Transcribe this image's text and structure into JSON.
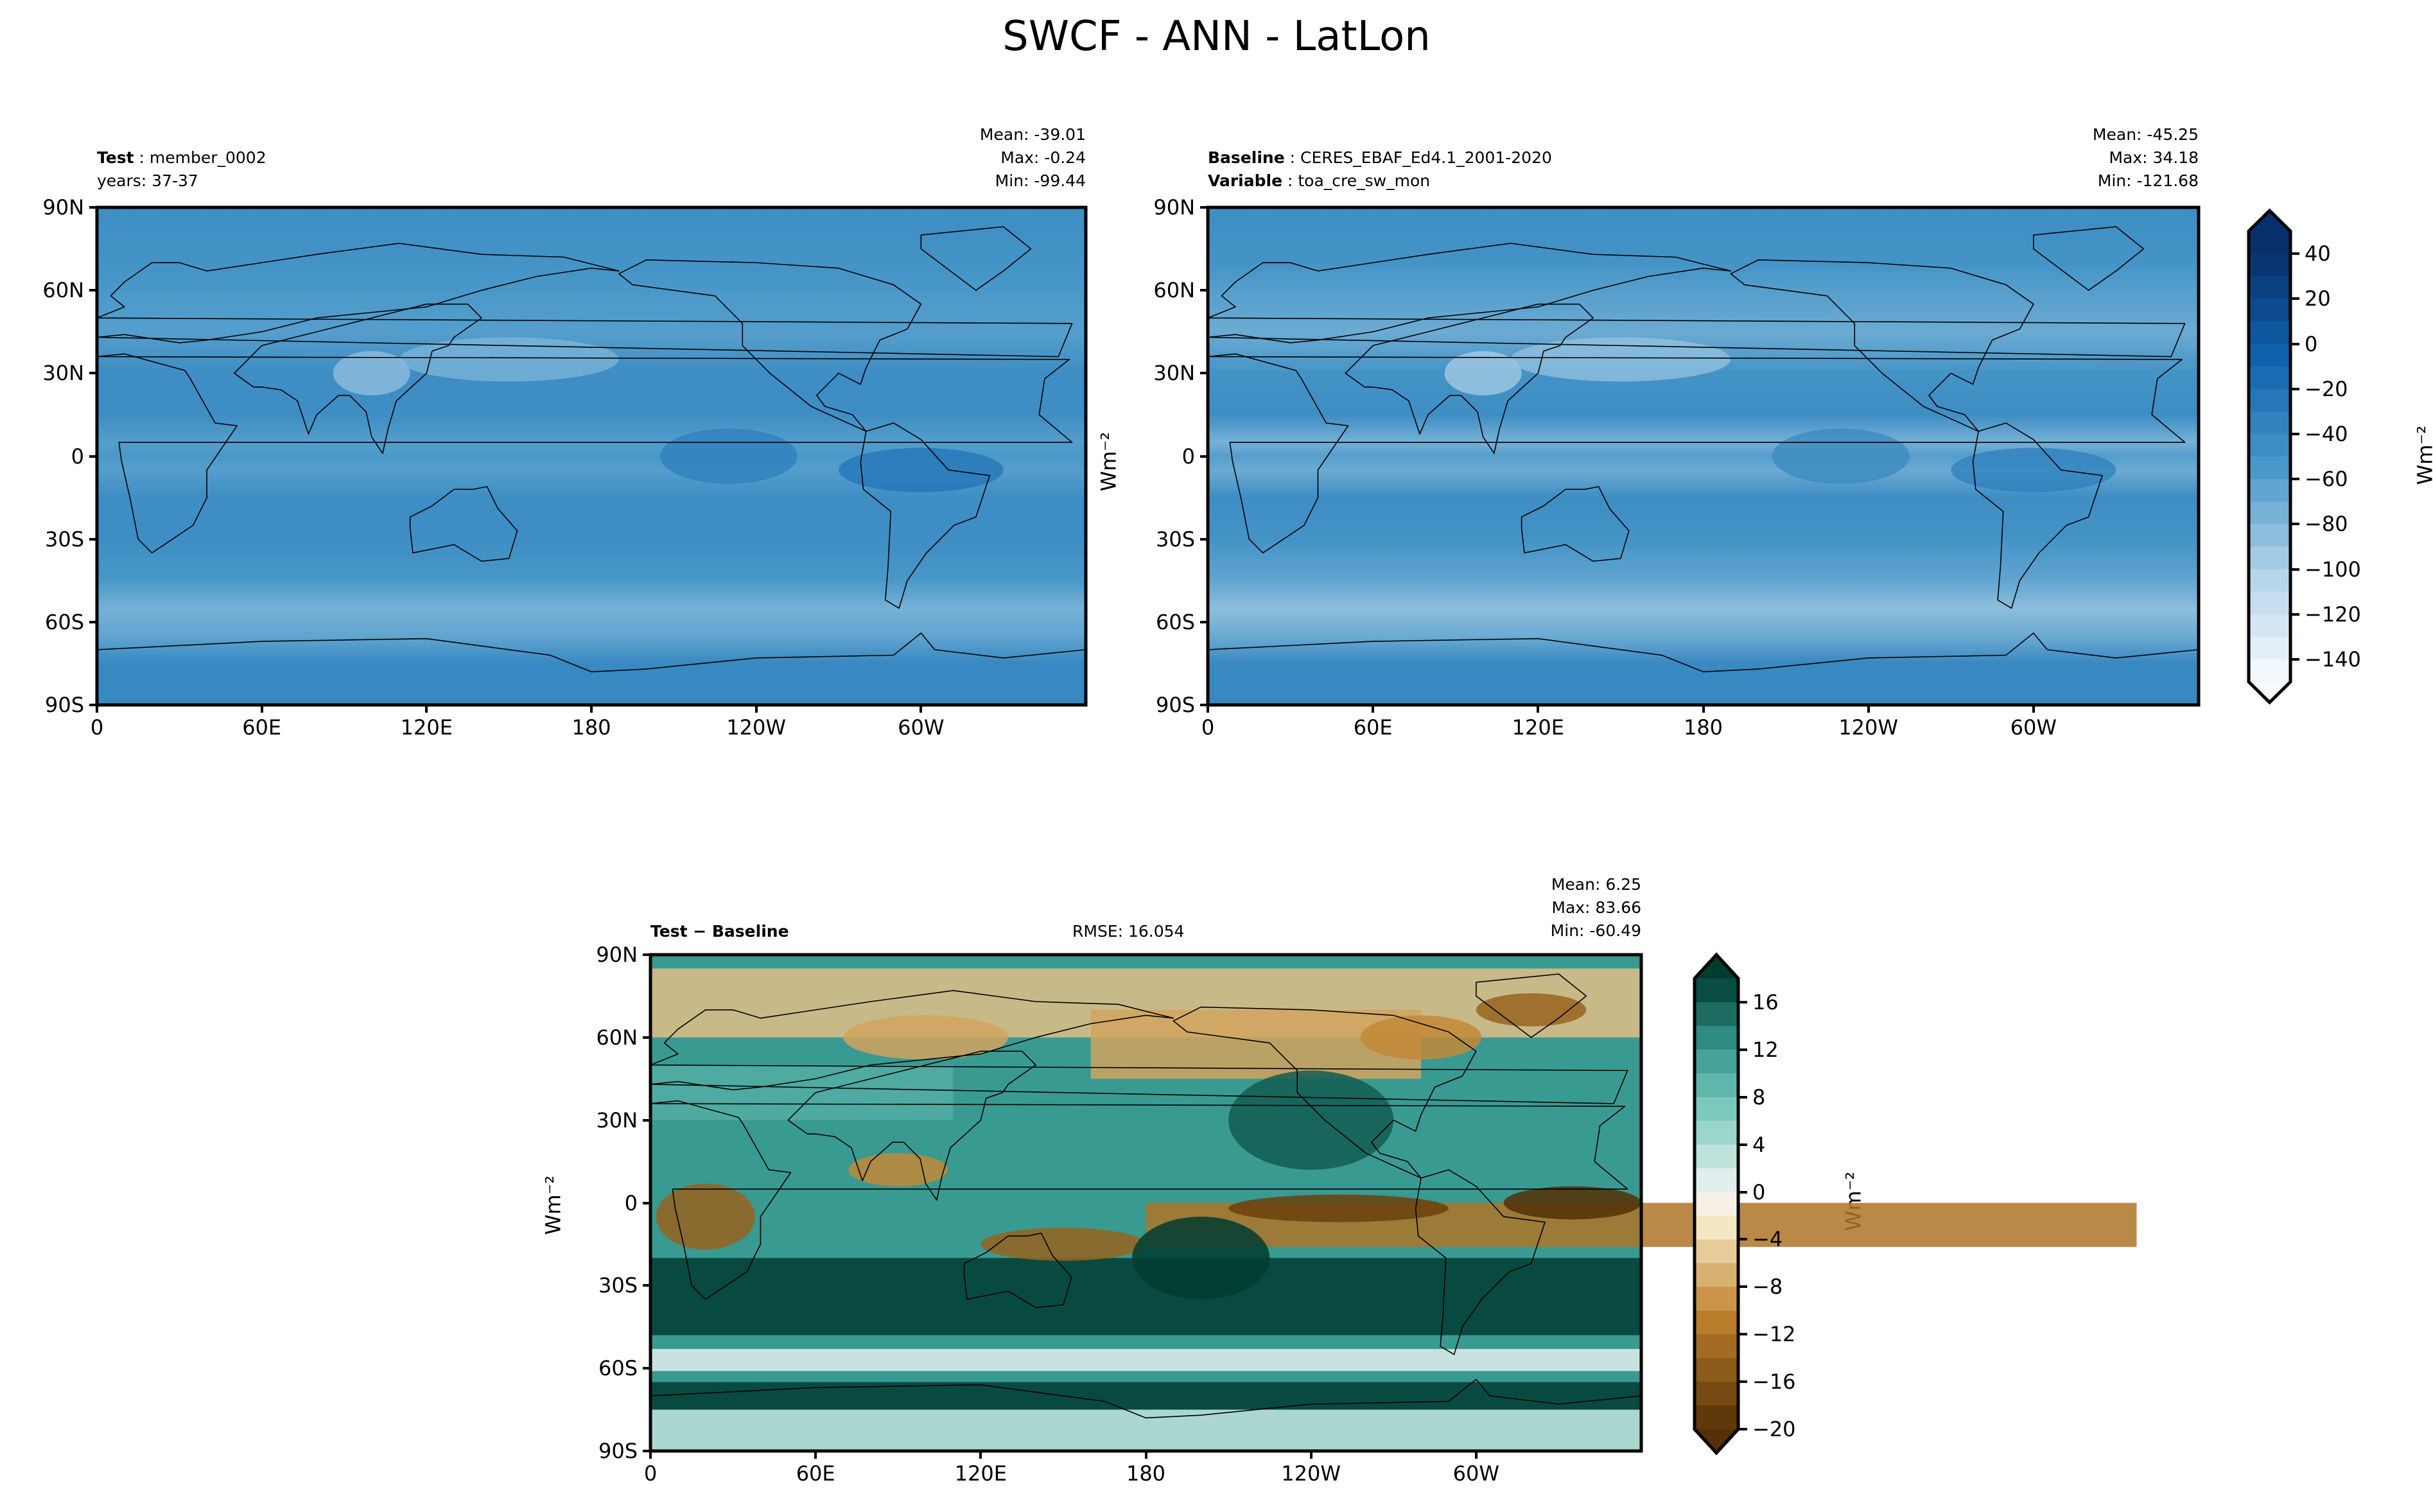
{
  "title": "SWCF - ANN - LatLon",
  "chart_data": [
    {
      "type": "heatmap",
      "name": "test",
      "header_bold": "Test",
      "header_value": "member_0002",
      "header_line2": "years: 37-37",
      "stats": {
        "mean": "Mean: -39.01",
        "max": "Max: -0.24",
        "min": "Min: -99.44"
      },
      "xticks": [
        "0",
        "60E",
        "120E",
        "180",
        "120W",
        "60W"
      ],
      "xtick_values": [
        0,
        60,
        120,
        180,
        240,
        300
      ],
      "yticks": [
        "90N",
        "60N",
        "30N",
        "0",
        "30S",
        "60S",
        "90S"
      ],
      "ytick_values": [
        90,
        60,
        30,
        0,
        -30,
        -60,
        -90
      ],
      "xlim": [
        0,
        360
      ],
      "ylim": [
        -90,
        90
      ],
      "zonal_profile": {
        "lat": [
          90,
          70,
          60,
          45,
          30,
          15,
          5,
          0,
          -5,
          -15,
          -30,
          -45,
          -55,
          -65,
          -75,
          -90
        ],
        "value": [
          -45,
          -50,
          -55,
          -60,
          -45,
          -45,
          -60,
          -55,
          -60,
          -45,
          -45,
          -55,
          -75,
          -65,
          -40,
          -40
        ]
      }
    },
    {
      "type": "heatmap",
      "name": "baseline",
      "header_bold": "Baseline",
      "header_value": "CERES_EBAF_Ed4.1_2001-2020",
      "header_bold2": "Variable",
      "header_value2": "toa_cre_sw_mon",
      "ylabel": "Wm⁻²",
      "stats": {
        "mean": "Mean: -45.25",
        "max": "Max: 34.18",
        "min": "Min: -121.68"
      },
      "xticks": [
        "0",
        "60E",
        "120E",
        "180",
        "120W",
        "60W"
      ],
      "xtick_values": [
        0,
        60,
        120,
        180,
        240,
        300
      ],
      "yticks": [
        "90N",
        "60N",
        "30N",
        "0",
        "30S",
        "60S",
        "90S"
      ],
      "ytick_values": [
        90,
        60,
        30,
        0,
        -30,
        -60,
        -90
      ],
      "xlim": [
        0,
        360
      ],
      "ylim": [
        -90,
        90
      ],
      "zonal_profile": {
        "lat": [
          90,
          70,
          60,
          45,
          30,
          15,
          5,
          0,
          -5,
          -15,
          -30,
          -45,
          -55,
          -65,
          -75,
          -90
        ],
        "value": [
          -45,
          -50,
          -60,
          -70,
          -50,
          -45,
          -75,
          -60,
          -70,
          -45,
          -50,
          -65,
          -85,
          -70,
          -40,
          -40
        ]
      },
      "colorbar": {
        "label": "Wm⁻²",
        "ticks": [
          "40",
          "20",
          "0",
          "−20",
          "−40",
          "−60",
          "−80",
          "−100",
          "−120",
          "−140"
        ],
        "tick_values": [
          40,
          20,
          0,
          -20,
          -40,
          -60,
          -80,
          -100,
          -120,
          -140
        ],
        "range": [
          -150,
          50
        ],
        "step": 10,
        "extend": "both",
        "colormap": "Blues_r"
      }
    },
    {
      "type": "heatmap",
      "name": "difference",
      "header_bold": "Test − Baseline",
      "rmse": "RMSE: 16.054",
      "ylabel": "Wm⁻²",
      "stats": {
        "mean": "Mean:  6.25",
        "max": "Max: 83.66",
        "min": "Min: -60.49"
      },
      "xticks": [
        "0",
        "60E",
        "120E",
        "180",
        "120W",
        "60W"
      ],
      "xtick_values": [
        0,
        60,
        120,
        180,
        240,
        300
      ],
      "yticks": [
        "90N",
        "60N",
        "30N",
        "0",
        "30S",
        "60S",
        "90S"
      ],
      "ytick_values": [
        90,
        60,
        30,
        0,
        -30,
        -60,
        -90
      ],
      "xlim": [
        0,
        360
      ],
      "ylim": [
        -90,
        90
      ],
      "colorbar": {
        "label": "Wm⁻²",
        "ticks": [
          "16",
          "12",
          "8",
          "4",
          "0",
          "−4",
          "−8",
          "−12",
          "−16",
          "−20"
        ],
        "tick_values": [
          16,
          12,
          8,
          4,
          0,
          -4,
          -8,
          -12,
          -16,
          -20
        ],
        "range": [
          -20,
          18
        ],
        "step": 2,
        "extend": "both",
        "colormap": "BrBG"
      }
    }
  ],
  "colors": {
    "axis": "#000000",
    "coast": "#000000"
  }
}
